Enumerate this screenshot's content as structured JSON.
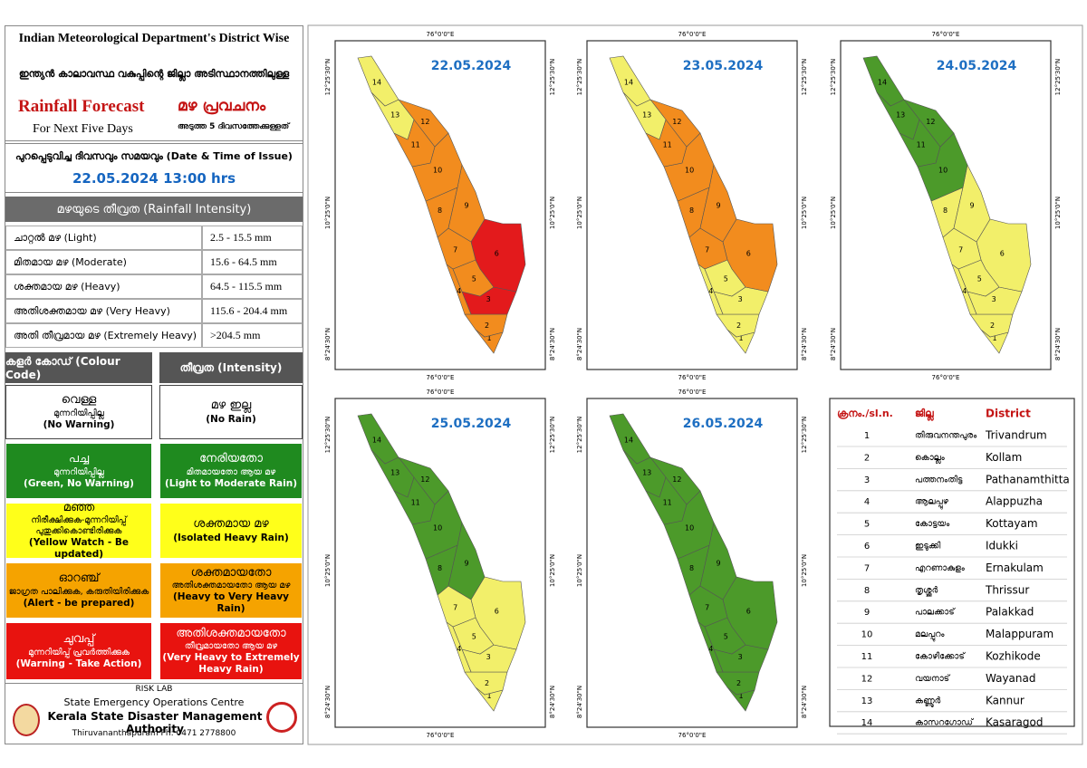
{
  "header": {
    "title": "Indian Meteorological Department's District Wise",
    "title_ml": "ഇന്ത്യൻ കാലാവസ്ഥ വകുപ്പിന്റെ ജില്ലാ അടിസ്ഥാനത്തിലുള്ള",
    "forecast": "Rainfall Forecast",
    "forecast_ml": "മഴ പ്രവചനം",
    "period": "For Next Five Days",
    "period_ml": "അടുത്ത 5 ദിവസത്തേക്കുള്ളത്"
  },
  "issue": {
    "label": "പുറപ്പെടുവിച്ച ദിവസവും സമയവും (Date & Time of Issue)",
    "value": "22.05.2024 13:00 hrs"
  },
  "intensity": {
    "heading": "മഴയുടെ തീവ്രത (Rainfall Intensity)",
    "rows": [
      [
        "ചാറ്റൽ മഴ (Light)",
        "2.5 - 15.5 mm"
      ],
      [
        "മിതമായ മഴ (Moderate)",
        "15.6 - 64.5 mm"
      ],
      [
        "ശക്തമായ മഴ (Heavy)",
        "64.5 - 115.5 mm"
      ],
      [
        "അതിശക്തമായ മഴ (Very Heavy)",
        "115.6 - 204.4 mm"
      ],
      [
        "അതി തീവ്രമായ മഴ (Extremely Heavy)",
        ">204.5 mm"
      ]
    ]
  },
  "colour_code": {
    "headers": [
      "കളർ കോഡ് (Colour Code)",
      "തീവ്രത (Intensity)"
    ],
    "rows": [
      {
        "color": "#ffffff",
        "code": [
          "വെള്ള",
          "മുന്നറിയിപ്പില്ല",
          "(No Warning)"
        ],
        "intensity": [
          "മഴ ഇല്ല",
          "(No Rain)"
        ]
      },
      {
        "color": "#1f8a1f",
        "code": [
          "പച്ച",
          "മുന്നറിയിപ്പില്ല",
          "(Green, No Warning)"
        ],
        "intensity": [
          "നേരിയതോ",
          "മിതമായതോ ആയ മഴ",
          "(Light to Moderate Rain)"
        ]
      },
      {
        "color": "#ffff1a",
        "code": [
          "മഞ്ഞ",
          "നിരീക്ഷിക്കുക-മുന്നറിയിപ്പ്",
          "പുതുക്കികൊണ്ടിരിക്കുക",
          "(Yellow Watch - Be updated)"
        ],
        "intensity": [
          "ശക്തമായ മഴ",
          "(Isolated Heavy Rain)"
        ]
      },
      {
        "color": "#f5a300",
        "code": [
          "ഓറഞ്ച്",
          "ജാഗ്രത പാലിക്കുക, കരുതിയിരിക്കുക",
          "(Alert - be prepared)"
        ],
        "intensity": [
          "ശക്തമായതോ",
          "അതിശക്തമായതോ ആയ മഴ",
          "(Heavy to Very Heavy Rain)"
        ]
      },
      {
        "color": "#e8130f",
        "code": [
          "ചുവപ്പ്",
          "മുന്നറിയിപ്പ് പ്രവർത്തിക്കുക",
          "(Warning - Take Action)"
        ],
        "intensity": [
          "അതിശക്തമായതോ",
          "തീവ്രമായതോ ആയ മഴ",
          "(Very Heavy to Extremely Heavy Rain)"
        ]
      }
    ]
  },
  "footer": {
    "lab": "RISK LAB",
    "centre": "State Emergency Operations Centre",
    "authority": "Kerala State Disaster Management Authority",
    "contact": "Thiruvananthapuram Ph: 0471 2778800"
  },
  "graticule": {
    "lon": "76°0'0\"E",
    "lat": [
      "12°25'30\"N",
      "10°25'0\"N",
      "8°24'30\"N"
    ]
  },
  "maps": [
    {
      "date": "22.05.2024",
      "district_colors": [
        "#f28c1e",
        "#f28c1e",
        "#e31a1c",
        "#f28c1e",
        "#f28c1e",
        "#e31a1c",
        "#f28c1e",
        "#f28c1e",
        "#f28c1e",
        "#f28c1e",
        "#f28c1e",
        "#f28c1e",
        "#f2ef6a",
        "#f2ef6a"
      ]
    },
    {
      "date": "23.05.2024",
      "district_colors": [
        "#f2ef6a",
        "#f2ef6a",
        "#f2ef6a",
        "#f2ef6a",
        "#f2ef6a",
        "#f28c1e",
        "#f28c1e",
        "#f28c1e",
        "#f28c1e",
        "#f28c1e",
        "#f28c1e",
        "#f28c1e",
        "#f2ef6a",
        "#f2ef6a"
      ]
    },
    {
      "date": "24.05.2024",
      "district_colors": [
        "#f2ef6a",
        "#f2ef6a",
        "#f2ef6a",
        "#f2ef6a",
        "#f2ef6a",
        "#f2ef6a",
        "#f2ef6a",
        "#f2ef6a",
        "#f2ef6a",
        "#4c9a2a",
        "#4c9a2a",
        "#4c9a2a",
        "#4c9a2a",
        "#4c9a2a"
      ]
    },
    {
      "date": "25.05.2024",
      "district_colors": [
        "#f2ef6a",
        "#f2ef6a",
        "#f2ef6a",
        "#f2ef6a",
        "#f2ef6a",
        "#f2ef6a",
        "#f2ef6a",
        "#4c9a2a",
        "#4c9a2a",
        "#4c9a2a",
        "#4c9a2a",
        "#4c9a2a",
        "#4c9a2a",
        "#4c9a2a"
      ]
    },
    {
      "date": "26.05.2024",
      "district_colors": [
        "#4c9a2a",
        "#4c9a2a",
        "#4c9a2a",
        "#4c9a2a",
        "#4c9a2a",
        "#4c9a2a",
        "#4c9a2a",
        "#4c9a2a",
        "#4c9a2a",
        "#4c9a2a",
        "#4c9a2a",
        "#4c9a2a",
        "#4c9a2a",
        "#4c9a2a"
      ]
    }
  ],
  "district_table": {
    "headers": [
      "ക്രനം./sl.n.",
      "ജില്ല",
      "District"
    ],
    "rows": [
      [
        1,
        "തിരുവനന്തപുരം",
        "Trivandrum"
      ],
      [
        2,
        "കൊല്ലം",
        "Kollam"
      ],
      [
        3,
        "പത്തനംതിട്ട",
        "Pathanamthitta"
      ],
      [
        4,
        "ആലപ്പുഴ",
        "Alappuzha"
      ],
      [
        5,
        "കോട്ടയം",
        "Kottayam"
      ],
      [
        6,
        "ഇടുക്കി",
        "Idukki"
      ],
      [
        7,
        "എറണാകുളം",
        "Ernakulam"
      ],
      [
        8,
        "തൃശ്ശൂർ",
        "Thrissur"
      ],
      [
        9,
        "പാലക്കാട്",
        "Palakkad"
      ],
      [
        10,
        "മലപ്പുറം",
        "Malappuram"
      ],
      [
        11,
        "കോഴിക്കോട്",
        "Kozhikode"
      ],
      [
        12,
        "വയനാട്",
        "Wayanad"
      ],
      [
        13,
        "കണ്ണൂർ",
        "Kannur"
      ],
      [
        14,
        "കാസറഗോഡ്",
        "Kasaragod"
      ]
    ]
  }
}
